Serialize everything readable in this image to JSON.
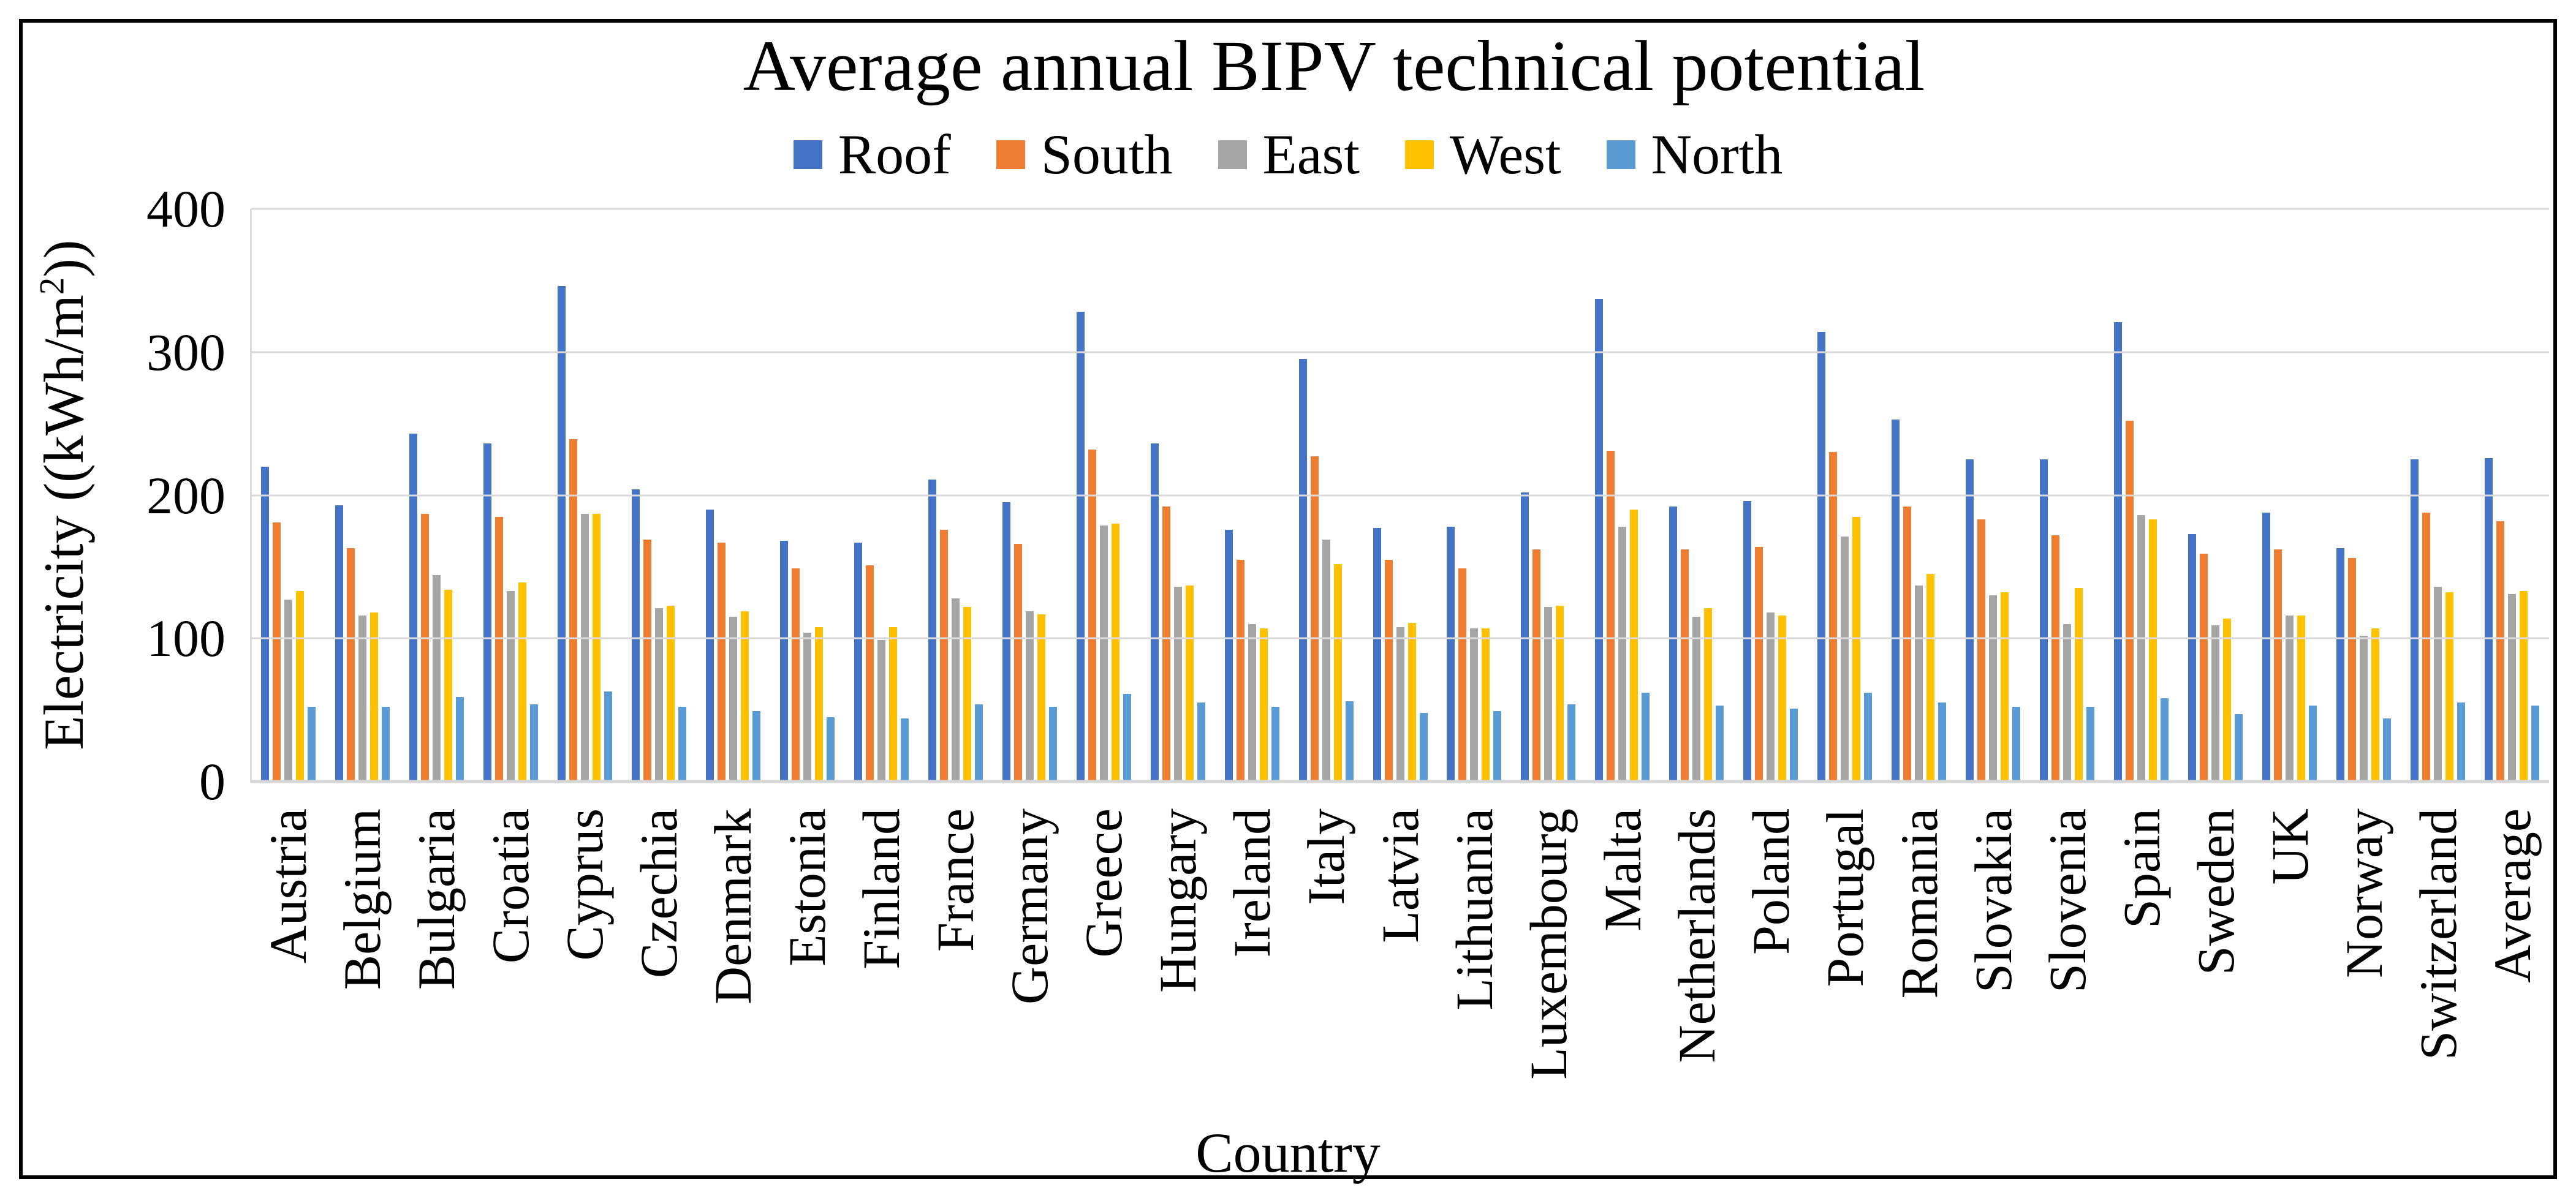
{
  "figure": {
    "title": "Average annual BIPV technical potential",
    "x_axis_title": "Country",
    "y_axis_title_prefix": "Electricity ((kWh/m",
    "y_axis_title_sup": "2",
    "y_axis_title_suffix": "))"
  },
  "colors": {
    "background": "#FFFFFF",
    "border": "#000000",
    "gridline": "#D9D9D9",
    "axis_line": "#D6D6D6",
    "text": "#000000"
  },
  "chart_data": {
    "type": "bar",
    "title": "Average annual BIPV technical potential",
    "xlabel": "Country",
    "ylabel": "Electricity ((kWh/m²))",
    "ylim": [
      0,
      400
    ],
    "yticks": [
      0,
      100,
      200,
      300,
      400
    ],
    "grid": "horizontal",
    "legend_position": "top",
    "categories": [
      "Austria",
      "Belgium",
      "Bulgaria",
      "Croatia",
      "Cyprus",
      "Czechia",
      "Denmark",
      "Estonia",
      "Finland",
      "France",
      "Germany",
      "Greece",
      "Hungary",
      "Ireland",
      "Italy",
      "Latvia",
      "Lithuania",
      "Luxembourg",
      "Malta",
      "Netherlands",
      "Poland",
      "Portugal",
      "Romania",
      "Slovakia",
      "Slovenia",
      "Spain",
      "Sweden",
      "UK",
      "Norway",
      "Switzerland",
      "Average"
    ],
    "series": [
      {
        "name": "Roof",
        "color": "#4472C4",
        "values": [
          220,
          193,
          243,
          236,
          346,
          204,
          190,
          168,
          167,
          211,
          195,
          328,
          236,
          176,
          295,
          177,
          178,
          202,
          337,
          192,
          196,
          314,
          253,
          225,
          225,
          321,
          173,
          188,
          163,
          225,
          226
        ]
      },
      {
        "name": "South",
        "color": "#ED7D31",
        "values": [
          181,
          163,
          187,
          185,
          239,
          169,
          167,
          149,
          151,
          176,
          166,
          232,
          192,
          155,
          227,
          155,
          149,
          162,
          231,
          162,
          164,
          230,
          192,
          183,
          172,
          252,
          159,
          162,
          156,
          188,
          182
        ]
      },
      {
        "name": "East",
        "color": "#A5A5A5",
        "values": [
          127,
          116,
          144,
          133,
          187,
          121,
          115,
          104,
          99,
          128,
          119,
          179,
          136,
          110,
          169,
          108,
          107,
          122,
          178,
          115,
          118,
          171,
          137,
          130,
          110,
          186,
          109,
          116,
          102,
          136,
          131
        ]
      },
      {
        "name": "West",
        "color": "#FFC000",
        "values": [
          133,
          118,
          134,
          139,
          187,
          123,
          119,
          108,
          108,
          122,
          117,
          180,
          137,
          107,
          152,
          111,
          107,
          123,
          190,
          121,
          116,
          185,
          145,
          132,
          135,
          183,
          114,
          116,
          107,
          132,
          133
        ]
      },
      {
        "name": "North",
        "color": "#5B9BD5",
        "values": [
          52,
          52,
          59,
          54,
          63,
          52,
          49,
          45,
          44,
          54,
          52,
          61,
          55,
          52,
          56,
          48,
          49,
          54,
          62,
          53,
          51,
          62,
          55,
          52,
          52,
          58,
          47,
          53,
          44,
          55,
          53
        ]
      }
    ]
  }
}
